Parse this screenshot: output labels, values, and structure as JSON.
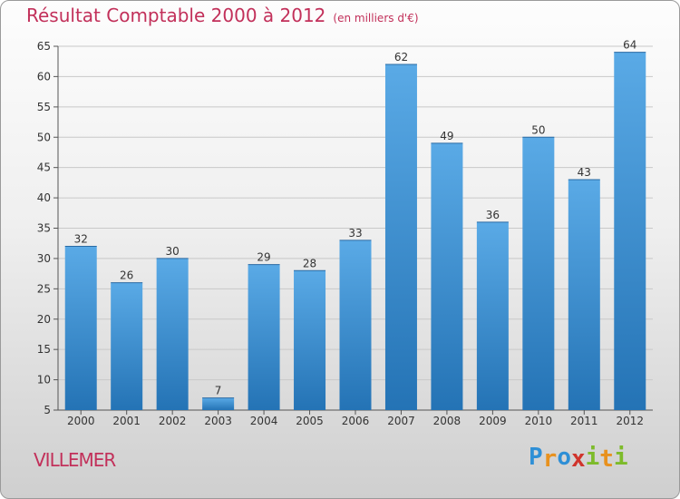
{
  "chart_data": {
    "type": "bar",
    "title": "Résultat Comptable 2000 à 2012",
    "unit_label": "(en milliers d'€)",
    "categories": [
      "2000",
      "2001",
      "2002",
      "2003",
      "2004",
      "2005",
      "2006",
      "2007",
      "2008",
      "2009",
      "2010",
      "2011",
      "2012"
    ],
    "values": [
      32,
      26,
      30,
      7,
      29,
      28,
      33,
      62,
      49,
      36,
      50,
      43,
      64
    ],
    "ylim": [
      5,
      65
    ],
    "yticks": [
      5,
      10,
      15,
      20,
      25,
      30,
      35,
      40,
      45,
      50,
      55,
      60,
      65
    ],
    "grid": true,
    "xlabel": "",
    "ylabel": ""
  },
  "commune": "VILLEMER",
  "logo": {
    "letters": [
      "P",
      "r",
      "o",
      "x",
      "i",
      "t",
      "i"
    ],
    "colors": [
      "#2e8fd6",
      "#e8911e",
      "#2e8fd6",
      "#d0342c",
      "#7dbb2a",
      "#e8911e",
      "#7dbb2a"
    ]
  },
  "colors": {
    "bar_top": "#5aaae6",
    "bar_bottom": "#2473b5",
    "title": "#c2305a",
    "grid": "#c8c8c8"
  }
}
